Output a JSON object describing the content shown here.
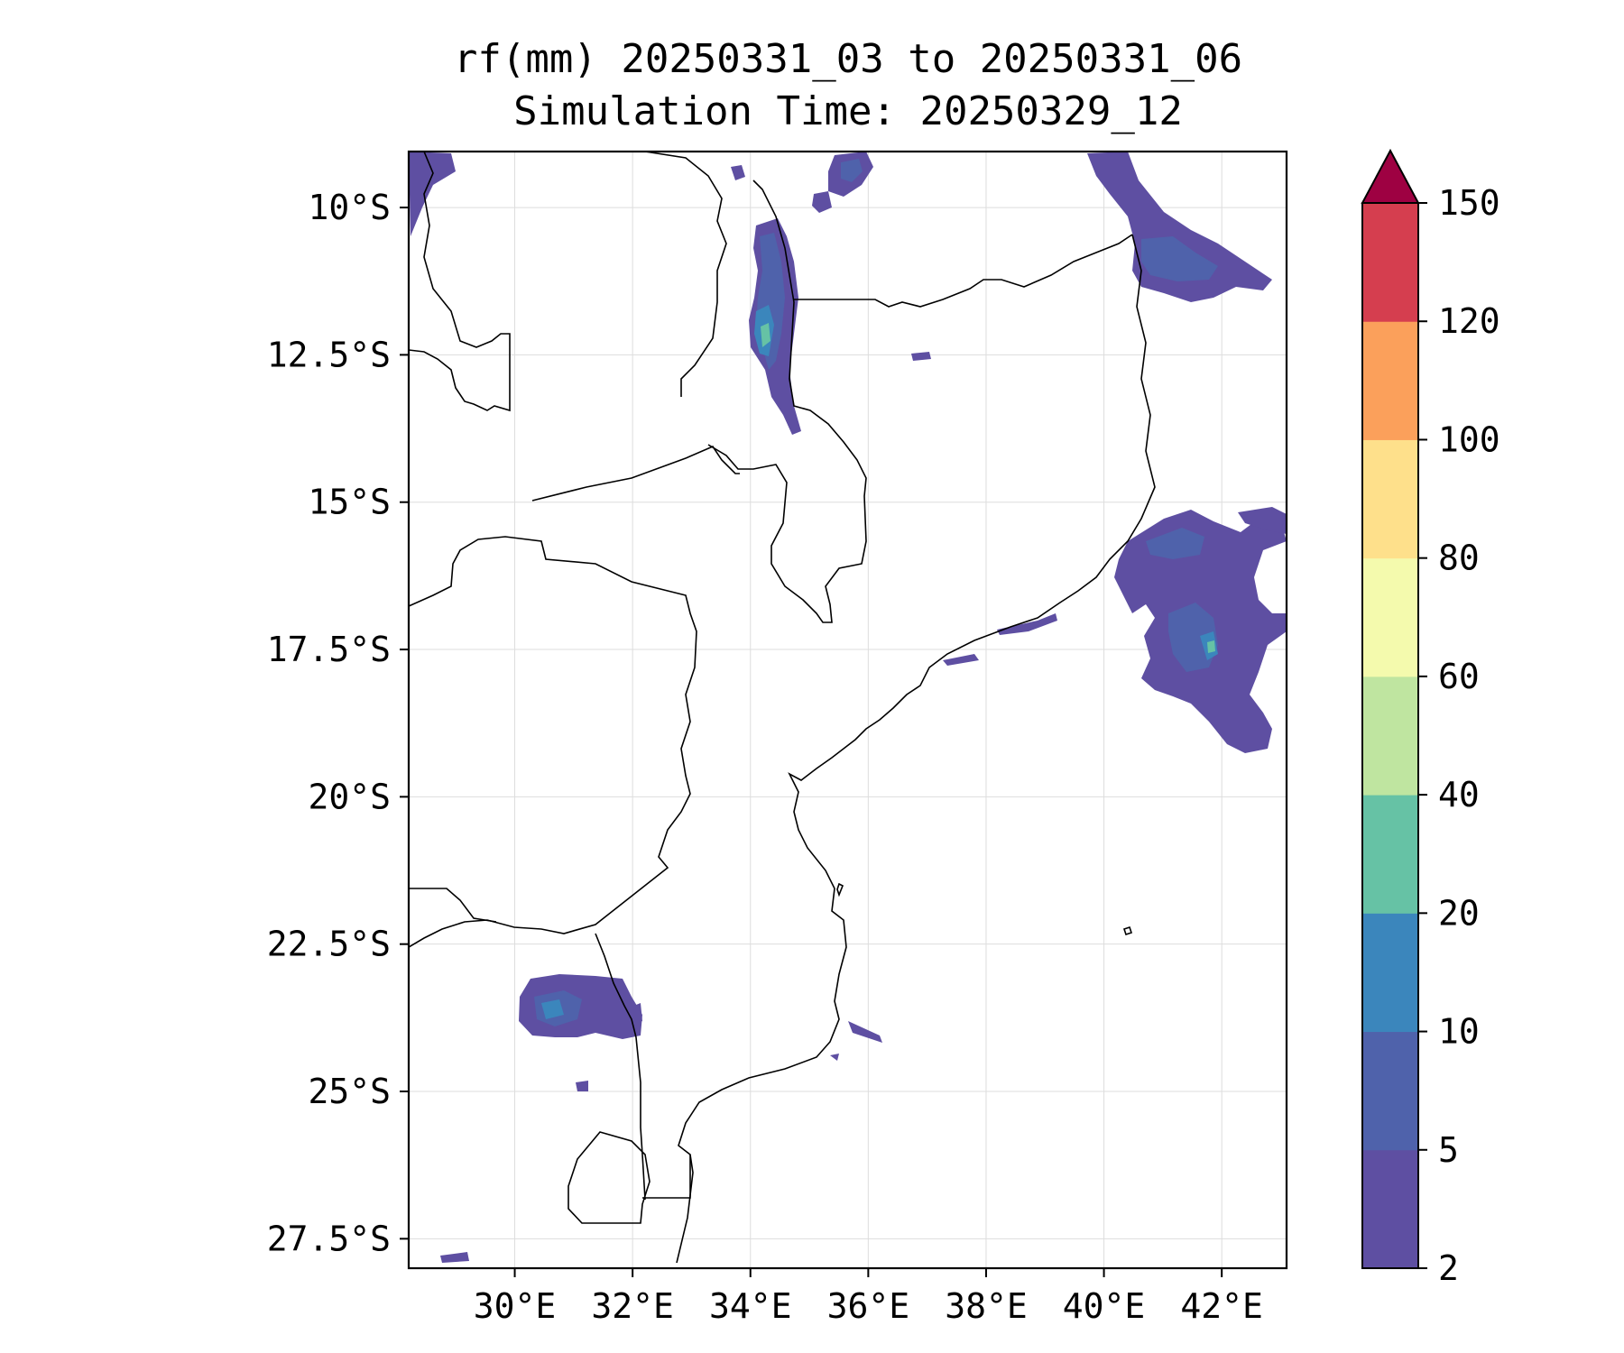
{
  "title": "rf(mm) 20250331_03 to 20250331_06",
  "subtitle": "Simulation Time: 20250329_12",
  "map": {
    "lon_range": [
      28.2,
      43.1
    ],
    "lat_range": [
      -28.0,
      -9.05
    ],
    "x_ticks": [
      {
        "value": 30,
        "label": "30°E"
      },
      {
        "value": 32,
        "label": "32°E"
      },
      {
        "value": 34,
        "label": "34°E"
      },
      {
        "value": 36,
        "label": "36°E"
      },
      {
        "value": 38,
        "label": "38°E"
      },
      {
        "value": 40,
        "label": "40°E"
      },
      {
        "value": 42,
        "label": "42°E"
      }
    ],
    "y_ticks": [
      {
        "value": -10,
        "label": "10°S"
      },
      {
        "value": -12.5,
        "label": "12.5°S"
      },
      {
        "value": -15,
        "label": "15°S"
      },
      {
        "value": -17.5,
        "label": "17.5°S"
      },
      {
        "value": -20,
        "label": "20°S"
      },
      {
        "value": -22.5,
        "label": "22.5°S"
      },
      {
        "value": -25,
        "label": "25°S"
      },
      {
        "value": -27.5,
        "label": "27.5°S"
      }
    ],
    "grid": true
  },
  "colorbar": {
    "levels": [
      "2",
      "5",
      "10",
      "20",
      "40",
      "60",
      "80",
      "100",
      "120",
      "150"
    ],
    "colors": [
      "#5e4fa2",
      "#4f62ab",
      "#3b86bc",
      "#66c2a5",
      "#bfe5a0",
      "#f4faad",
      "#fee08b",
      "#fba05b",
      "#d53e4f"
    ],
    "extend_color": "#9e0142"
  },
  "rain_colors": {
    "light": "#5e4fa2",
    "moderate": "#4f62ab",
    "heavy": "#3b86bc",
    "very_heavy": "#66c2a5"
  }
}
